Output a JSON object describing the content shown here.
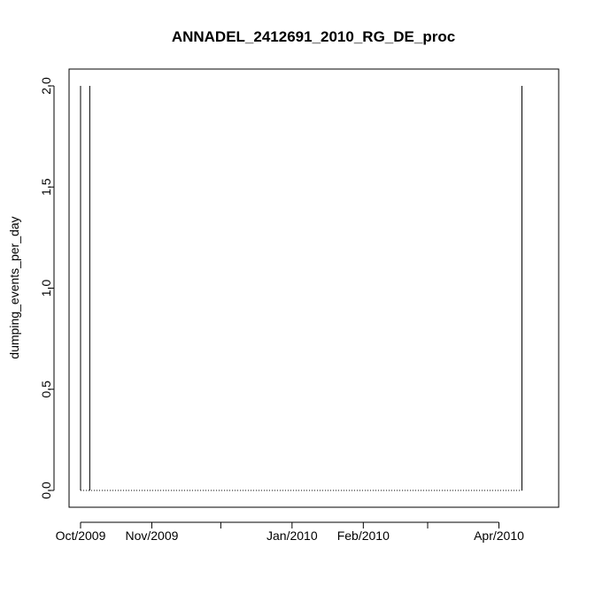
{
  "chart_data": {
    "type": "line",
    "title": "ANNADEL_2412691_2010_RG_DE_proc",
    "xlabel": "",
    "ylabel": "dumping_events_per_day",
    "ylim": [
      0,
      2
    ],
    "yticks": [
      "0.0",
      "0.5",
      "1.0",
      "1.5",
      "2.0"
    ],
    "xlim": [
      "2009-09-26",
      "2010-04-27"
    ],
    "xticks": [
      {
        "date": "2009-10-01",
        "label": "Oct/2009"
      },
      {
        "date": "2009-11-01",
        "label": "Nov/2009"
      },
      {
        "date": "2009-12-01",
        "label": ""
      },
      {
        "date": "2010-01-01",
        "label": "Jan/2010"
      },
      {
        "date": "2010-02-01",
        "label": "Feb/2010"
      },
      {
        "date": "2010-03-01",
        "label": ""
      },
      {
        "date": "2010-04-01",
        "label": "Apr/2010"
      }
    ],
    "series": [
      {
        "style": "vertical-lines",
        "x": [
          "2009-10-01",
          "2009-10-05",
          "2010-04-11"
        ],
        "y": [
          2,
          2,
          2
        ]
      }
    ],
    "baseline": {
      "style": "dotted",
      "x_start": "2009-10-01",
      "x_end": "2010-04-11",
      "y": 0
    },
    "grid": false,
    "legend": "none"
  }
}
